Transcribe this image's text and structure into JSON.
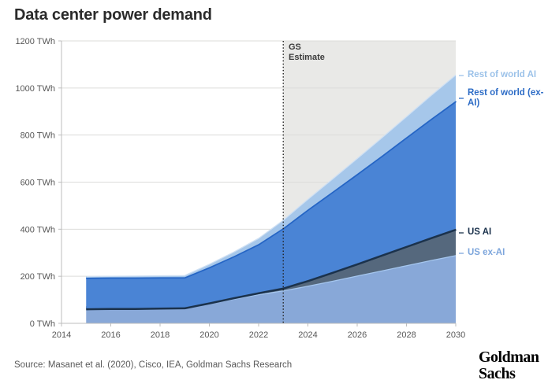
{
  "header": {
    "title": "Data center power demand"
  },
  "annotation": {
    "line1": "GS",
    "line2": "Estimate"
  },
  "legend": [
    {
      "label": "Rest of world AI",
      "color": "#9cc2e9"
    },
    {
      "label": "Rest of world (ex-AI)",
      "color": "#2d6cc6"
    },
    {
      "label": "US AI",
      "color": "#1b324c"
    },
    {
      "label": "US ex-AI",
      "color": "#7da6dc"
    }
  ],
  "footer": {
    "source": "Source: Masanet et al. (2020), Cisco, IEA, Goldman Sachs Research",
    "logo_line1": "Goldman",
    "logo_line2": "Sachs"
  },
  "chart_data": {
    "type": "area",
    "stacked": true,
    "title": "Data center power demand",
    "xlabel": "",
    "ylabel": "TWh",
    "ylabel_suffix": " TWh",
    "xlim": [
      2014,
      2030
    ],
    "ylim": [
      0,
      1200
    ],
    "ytick_step": 200,
    "xticks": [
      2014,
      2016,
      2018,
      2020,
      2022,
      2024,
      2026,
      2028,
      2030
    ],
    "grid": true,
    "legend_position": "right",
    "estimate_start_x": 2023,
    "estimate_label": "GS Estimate",
    "estimate_region_color": "#e9e9e7",
    "estimate_line_color": "#222222",
    "x": [
      2015,
      2016,
      2017,
      2018,
      2019,
      2020,
      2021,
      2022,
      2023,
      2024,
      2025,
      2026,
      2027,
      2028,
      2029,
      2030
    ],
    "series": [
      {
        "name": "US ex-AI",
        "fill": "#88a8d8",
        "edge": "#a5c6ee",
        "edge_width": 2.6,
        "values": [
          62,
          63,
          63,
          64,
          65,
          85,
          105,
          124,
          140,
          160,
          181,
          203,
          225,
          247,
          269,
          290
        ]
      },
      {
        "name": "US AI",
        "fill": "#55687d",
        "edge": "#1b324c",
        "edge_width": 5,
        "values": [
          2,
          2,
          2,
          3,
          3,
          4,
          6,
          8,
          12,
          24,
          38,
          52,
          67,
          82,
          97,
          112
        ]
      },
      {
        "name": "Rest of world (ex-AI)",
        "fill": "#4a84d5",
        "edge": "#2565c5",
        "edge_width": 3.5,
        "values": [
          130,
          130,
          130,
          129,
          128,
          150,
          175,
          205,
          253,
          300,
          340,
          380,
          420,
          462,
          503,
          543
        ]
      },
      {
        "name": "Rest of world AI",
        "fill": "#a6c7ea",
        "edge": "#cfe0f3",
        "edge_width": 1.3,
        "values": [
          5,
          5,
          6,
          6,
          7,
          12,
          17,
          24,
          33,
          43,
          54,
          65,
          76,
          87,
          99,
          110
        ]
      }
    ]
  }
}
